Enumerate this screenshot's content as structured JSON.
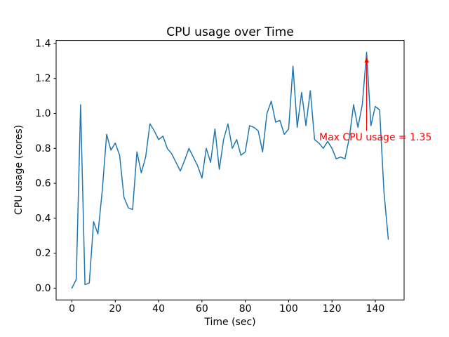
{
  "figure": {
    "background": "#ffffff"
  },
  "chart_data": {
    "type": "line",
    "title": "CPU usage over Time",
    "xlabel": "Time (sec)",
    "ylabel": "CPU usage (cores)",
    "line_color": "#1f77b4",
    "axis_color": "#000000",
    "grid": false,
    "xlim": [
      -7.3,
      153.3
    ],
    "ylim": [
      -0.0675,
      1.4175
    ],
    "xticks": [
      0,
      20,
      40,
      60,
      80,
      100,
      120,
      140
    ],
    "yticks": [
      0.0,
      0.2,
      0.4,
      0.6,
      0.8,
      1.0,
      1.2,
      1.4
    ],
    "x": [
      0,
      2,
      4,
      6,
      8,
      10,
      12,
      14,
      16,
      18,
      20,
      22,
      24,
      26,
      28,
      30,
      32,
      34,
      36,
      38,
      40,
      42,
      44,
      46,
      48,
      50,
      52,
      54,
      56,
      58,
      60,
      62,
      64,
      66,
      68,
      70,
      72,
      74,
      76,
      78,
      80,
      82,
      84,
      86,
      88,
      90,
      92,
      94,
      96,
      98,
      100,
      102,
      104,
      106,
      108,
      110,
      112,
      114,
      116,
      118,
      120,
      122,
      124,
      126,
      128,
      130,
      132,
      134,
      136,
      138,
      140,
      142,
      144,
      146
    ],
    "y": [
      0.0,
      0.05,
      1.05,
      0.02,
      0.03,
      0.38,
      0.31,
      0.56,
      0.88,
      0.79,
      0.83,
      0.76,
      0.52,
      0.46,
      0.45,
      0.78,
      0.66,
      0.75,
      0.94,
      0.9,
      0.85,
      0.87,
      0.8,
      0.77,
      0.72,
      0.67,
      0.73,
      0.8,
      0.75,
      0.7,
      0.63,
      0.8,
      0.72,
      0.91,
      0.68,
      0.85,
      0.94,
      0.8,
      0.85,
      0.76,
      0.78,
      0.93,
      0.92,
      0.9,
      0.78,
      1.0,
      1.07,
      0.95,
      0.96,
      0.88,
      0.91,
      1.27,
      0.92,
      1.12,
      0.93,
      1.13,
      0.85,
      0.83,
      0.8,
      0.84,
      0.8,
      0.74,
      0.75,
      0.74,
      0.86,
      1.05,
      0.92,
      1.05,
      1.35,
      0.93,
      1.04,
      1.02,
      0.55,
      0.28
    ],
    "annotation": {
      "text": "Max CPU usage = 1.35",
      "color": "#ff0000",
      "text_x": 114,
      "text_y": 0.85,
      "arrow_x": 136,
      "arrow_y_start": 0.9,
      "arrow_y_end": 1.32
    },
    "max_value": 1.35
  }
}
